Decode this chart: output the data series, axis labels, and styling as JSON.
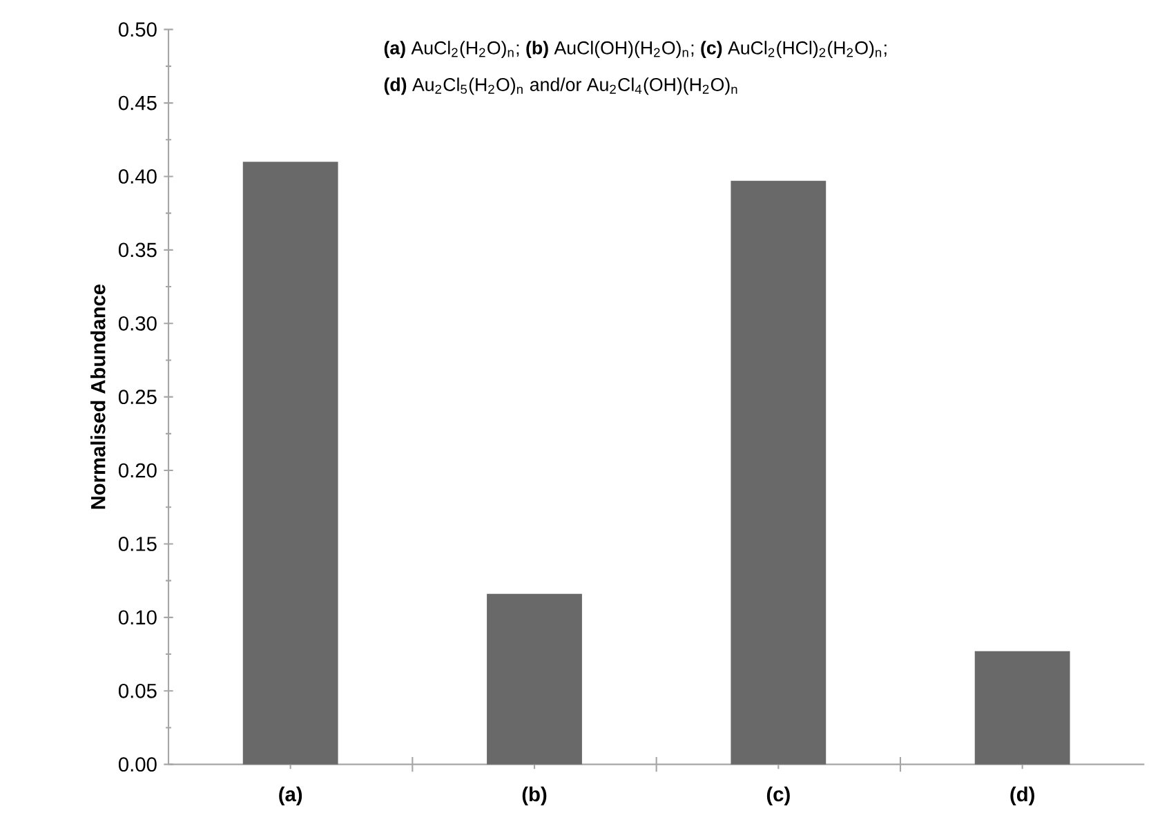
{
  "chart_data": {
    "type": "bar",
    "ylabel": "Normalised Abundance",
    "categories": [
      "(a)",
      "(b)",
      "(c)",
      "(d)"
    ],
    "values": [
      0.41,
      0.116,
      0.397,
      0.077
    ],
    "color": "#696969",
    "ylim": [
      0,
      0.5
    ],
    "yticks": [
      {
        "value": 0,
        "label": "0.00"
      },
      {
        "value": 0.05,
        "label": "0.05"
      },
      {
        "value": 0.1,
        "label": "0.10"
      },
      {
        "value": 0.15,
        "label": "0.15"
      },
      {
        "value": 0.2,
        "label": "0.20"
      },
      {
        "value": 0.25,
        "label": "0.25"
      },
      {
        "value": 0.3,
        "label": "0.30"
      },
      {
        "value": 0.35,
        "label": "0.35"
      },
      {
        "value": 0.4,
        "label": "0.40"
      },
      {
        "value": 0.45,
        "label": "0.45"
      },
      {
        "value": 0.5,
        "label": "0.50"
      }
    ],
    "grid": false,
    "annotations": [
      "**(a)** AuCl$_{2}$(H$_{2}$O)$_{n}$; **(b)** AuCl(OH)(H$_{2}$O)$_{n}$; **(c)** AuCl$_{2}$(HCl)$_{2}$(H$_{2}$O)$_{n}$;",
      "**(d)** Au$_{2}$Cl$_{5}$(H$_{2}$O)$_{n}$ and/or Au$_{2}$Cl$_{4}$(OH)(H$_{2}$O)$_{n}$"
    ]
  }
}
